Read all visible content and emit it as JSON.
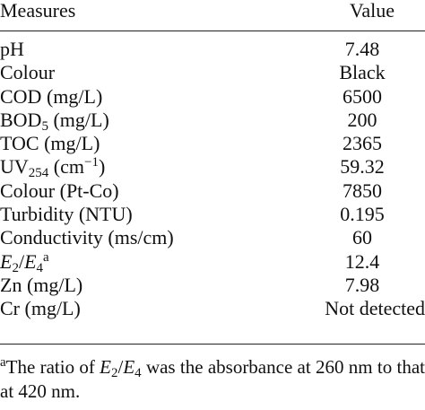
{
  "table": {
    "headers": {
      "measure": "Measures",
      "value": "Value"
    },
    "rows": [
      {
        "label_main": "pH",
        "label_sub": "",
        "label_after": "",
        "value": "7.48"
      },
      {
        "label_main": "Colour",
        "label_sub": "",
        "label_after": "",
        "value": "Black"
      },
      {
        "label_main": "COD (mg/L)",
        "label_sub": "",
        "label_after": "",
        "value": "6500"
      },
      {
        "label_main": "BOD",
        "label_sub": "5",
        "label_after": " (mg/L)",
        "value": "200"
      },
      {
        "label_main": "TOC (mg/L)",
        "label_sub": "",
        "label_after": "",
        "value": "2365"
      },
      {
        "label_main": "UV",
        "label_sub": "254",
        "label_after": " (cm",
        "label_sup": "−1",
        "label_end": ")",
        "value": "59.32"
      },
      {
        "label_main": "Colour (Pt-Co)",
        "label_sub": "",
        "label_after": "",
        "value": "7850"
      },
      {
        "label_main": "Turbidity (NTU)",
        "label_sub": "",
        "label_after": "",
        "value": "0.195"
      },
      {
        "label_main": "Conductivity (ms/cm)",
        "label_sub": "",
        "label_after": "",
        "value": "60"
      },
      {
        "label_e": "E",
        "label_sub1": "2",
        "label_slash": "/",
        "label_e2": "E",
        "label_sub2": "4",
        "label_sup": "a",
        "value": "12.4"
      },
      {
        "label_main": "Zn (mg/L)",
        "label_sub": "",
        "label_after": "",
        "value": "7.98"
      },
      {
        "label_main": "Cr (mg/L)",
        "label_sub": "",
        "label_after": "",
        "value": "Not detected"
      }
    ]
  },
  "footnote": {
    "marker": "a",
    "text_before": "The ratio of ",
    "e1": "E",
    "sub1": "2",
    "slash": "/",
    "e2": "E",
    "sub2": "4",
    "text_after": " was the absorbance at 260 nm to that at 420 nm."
  }
}
